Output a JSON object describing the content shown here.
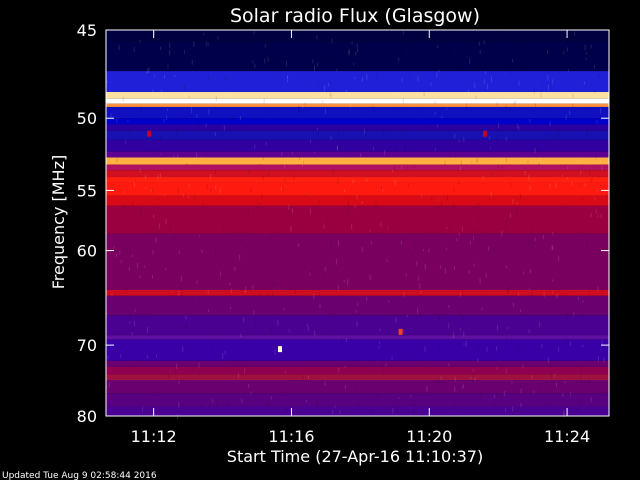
{
  "chart_data": {
    "type": "heatmap",
    "title": "Solar radio Flux (Glasgow)",
    "xlabel": "Start Time (27-Apr-16 11:10:37)",
    "ylabel": "Frequency [MHz]",
    "x_ticks": [
      "11:12",
      "11:16",
      "11:20",
      "11:24"
    ],
    "x_tick_minutes": [
      1.383,
      5.383,
      9.383,
      13.383
    ],
    "x_range_minutes": [
      0,
      14.6
    ],
    "y_ticks": [
      45,
      50,
      55,
      60,
      70,
      80
    ],
    "y_range": [
      45,
      80
    ],
    "y_scale": "reciprocal",
    "bands": [
      {
        "f0": 45.0,
        "f1": 45.6,
        "color": "#000040"
      },
      {
        "f0": 45.6,
        "f1": 47.2,
        "color": "#00004a"
      },
      {
        "f0": 47.2,
        "f1": 48.4,
        "color": "#2020d8"
      },
      {
        "f0": 48.4,
        "f1": 48.8,
        "color": "#ffe0a0"
      },
      {
        "f0": 48.8,
        "f1": 49.1,
        "color": "#ffffff"
      },
      {
        "f0": 49.1,
        "f1": 49.3,
        "color": "#ff9040"
      },
      {
        "f0": 49.3,
        "f1": 50.0,
        "color": "#1010c0"
      },
      {
        "f0": 50.0,
        "f1": 50.4,
        "color": "#0000c8"
      },
      {
        "f0": 50.4,
        "f1": 50.8,
        "color": "#2a00a0"
      },
      {
        "f0": 50.8,
        "f1": 51.4,
        "color": "#1810b0"
      },
      {
        "f0": 51.4,
        "f1": 52.2,
        "color": "#3000a0"
      },
      {
        "f0": 52.2,
        "f1": 52.6,
        "color": "#600090"
      },
      {
        "f0": 52.6,
        "f1": 53.1,
        "color": "#ffb040"
      },
      {
        "f0": 53.1,
        "f1": 53.5,
        "color": "#b01060"
      },
      {
        "f0": 53.5,
        "f1": 54.0,
        "color": "#d01020"
      },
      {
        "f0": 54.0,
        "f1": 54.4,
        "color": "#ff2010"
      },
      {
        "f0": 54.4,
        "f1": 55.4,
        "color": "#ff1a10"
      },
      {
        "f0": 55.4,
        "f1": 56.2,
        "color": "#d80a18"
      },
      {
        "f0": 56.2,
        "f1": 58.5,
        "color": "#9a0040"
      },
      {
        "f0": 58.5,
        "f1": 63.8,
        "color": "#7a0060"
      },
      {
        "f0": 63.8,
        "f1": 64.4,
        "color": "#d00c20"
      },
      {
        "f0": 64.4,
        "f1": 66.5,
        "color": "#6a0070"
      },
      {
        "f0": 66.5,
        "f1": 68.8,
        "color": "#4a0090"
      },
      {
        "f0": 68.8,
        "f1": 69.3,
        "color": "#6010a0"
      },
      {
        "f0": 69.3,
        "f1": 72.0,
        "color": "#3a00a8"
      },
      {
        "f0": 72.0,
        "f1": 72.8,
        "color": "#6a0070"
      },
      {
        "f0": 72.8,
        "f1": 73.8,
        "color": "#900050"
      },
      {
        "f0": 73.8,
        "f1": 74.6,
        "color": "#a01040"
      },
      {
        "f0": 74.6,
        "f1": 76.5,
        "color": "#6a0070"
      },
      {
        "f0": 76.5,
        "f1": 78.5,
        "color": "#580080"
      },
      {
        "f0": 78.5,
        "f1": 80.0,
        "color": "#4a0090"
      }
    ],
    "bursts": [
      {
        "t": 5.05,
        "f": 70.5,
        "color": "#ffffd0"
      },
      {
        "t": 8.55,
        "f": 68.4,
        "color": "#ff4020"
      },
      {
        "t": 1.25,
        "f": 51.0,
        "color": "#c00030"
      },
      {
        "t": 11.0,
        "f": 51.0,
        "color": "#c00030"
      }
    ]
  },
  "footer": "Updated Tue Aug  9 02:58:44 2016"
}
